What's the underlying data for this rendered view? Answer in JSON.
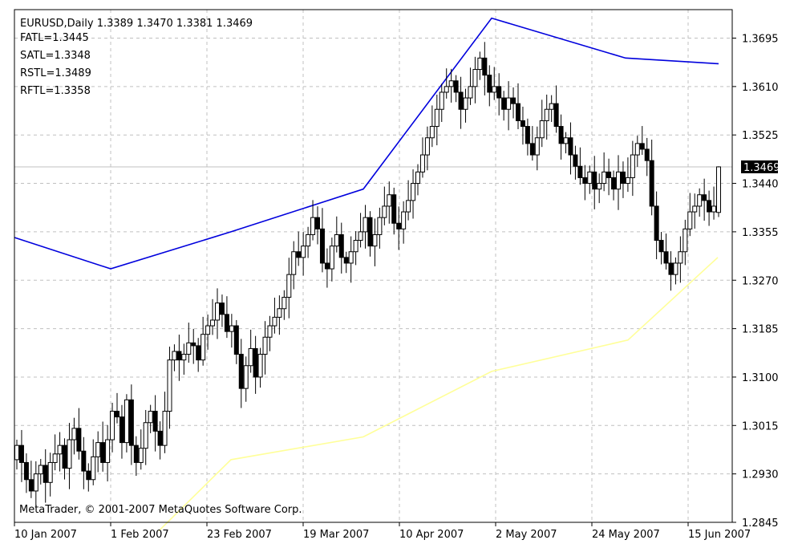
{
  "header": {
    "symbol_line": "EURUSD,Daily  1.3389 1.3470 1.3381 1.3469",
    "indicators": [
      "FATL=1.3445",
      "SATL=1.3348",
      "RSTL=1.3489",
      "RFTL=1.3358"
    ]
  },
  "footer": {
    "copyright": "MetaTrader, © 2001-2007 MetaQuotes Software Corp."
  },
  "colors": {
    "background": "#ffffff",
    "grid": "#c0c0c0",
    "bull_candle": "#ffffff",
    "bear_candle": "#000000",
    "rstl_line": "#0000dd",
    "yellow_line": "#ffff99",
    "price_label_bg": "#000000",
    "price_label_text": "#ffffff"
  },
  "chart_data": {
    "type": "candlestick",
    "symbol": "EURUSD",
    "timeframe": "Daily",
    "last_ohlc": {
      "open": 1.3389,
      "high": 1.347,
      "low": 1.3381,
      "close": 1.3469
    },
    "current_price_label": "1.3469",
    "y_ticks": [
      "1.3695",
      "1.3610",
      "1.3525",
      "1.3440",
      "1.3355",
      "1.3270",
      "1.3185",
      "1.3100",
      "1.3015",
      "1.2930",
      "1.2845"
    ],
    "x_ticks": [
      "10 Jan 2007",
      "1 Feb 2007",
      "23 Feb 2007",
      "19 Mar 2007",
      "10 Apr 2007",
      "2 May 2007",
      "24 May 2007",
      "15 Jun 2007"
    ],
    "ylim": [
      1.2845,
      1.3745
    ],
    "grid": true,
    "closes": [
      1.298,
      1.295,
      1.292,
      1.29,
      1.293,
      1.2945,
      1.2915,
      1.295,
      1.2965,
      1.298,
      1.294,
      1.299,
      1.301,
      1.297,
      1.2935,
      1.292,
      1.296,
      1.2985,
      1.295,
      1.299,
      1.304,
      1.303,
      1.2985,
      1.306,
      1.298,
      1.295,
      1.2975,
      1.302,
      1.304,
      1.3005,
      1.298,
      1.304,
      1.313,
      1.3145,
      1.313,
      1.314,
      1.316,
      1.3155,
      1.313,
      1.3175,
      1.319,
      1.32,
      1.323,
      1.321,
      1.318,
      1.319,
      1.314,
      1.308,
      1.312,
      1.315,
      1.31,
      1.314,
      1.317,
      1.319,
      1.3205,
      1.322,
      1.324,
      1.328,
      1.332,
      1.331,
      1.333,
      1.335,
      1.338,
      1.336,
      1.33,
      1.329,
      1.333,
      1.335,
      1.331,
      1.33,
      1.332,
      1.334,
      1.3355,
      1.338,
      1.333,
      1.335,
      1.338,
      1.34,
      1.342,
      1.337,
      1.336,
      1.339,
      1.341,
      1.344,
      1.346,
      1.349,
      1.352,
      1.354,
      1.357,
      1.36,
      1.361,
      1.362,
      1.36,
      1.357,
      1.359,
      1.361,
      1.364,
      1.366,
      1.363,
      1.36,
      1.361,
      1.359,
      1.357,
      1.359,
      1.358,
      1.355,
      1.354,
      1.351,
      1.349,
      1.352,
      1.355,
      1.357,
      1.358,
      1.354,
      1.351,
      1.352,
      1.349,
      1.347,
      1.345,
      1.344,
      1.346,
      1.343,
      1.344,
      1.346,
      1.345,
      1.343,
      1.346,
      1.344,
      1.345,
      1.349,
      1.351,
      1.35,
      1.348,
      1.34,
      1.334,
      1.332,
      1.33,
      1.328,
      1.33,
      1.332,
      1.336,
      1.339,
      1.34,
      1.342,
      1.341,
      1.339,
      1.34,
      1.3469
    ],
    "series": [
      {
        "name": "RSTL",
        "color": "#0000dd",
        "values": [
          1.3345,
          1.329,
          1.3355,
          1.343,
          1.373,
          1.366,
          1.365
        ]
      },
      {
        "name": "",
        "color": "#ffff99",
        "values": [
          1.283,
          1.2955,
          1.2995,
          1.311,
          1.3165,
          1.331
        ]
      }
    ]
  }
}
